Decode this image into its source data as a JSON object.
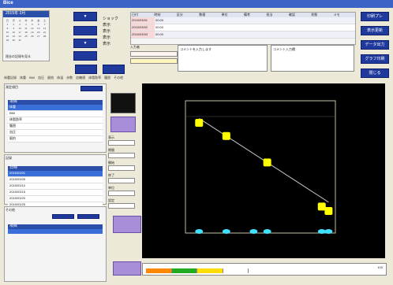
{
  "window": {
    "title": "Bice"
  },
  "calendar": {
    "header": "2015年 3月",
    "weekdays": [
      "日",
      "月",
      "火",
      "水",
      "木",
      "金",
      "土"
    ],
    "days": [
      "1",
      "2",
      "3",
      "4",
      "5",
      "6",
      "7",
      "8",
      "9",
      "10",
      "11",
      "12",
      "13",
      "14",
      "15",
      "16",
      "17",
      "18",
      "19",
      "20",
      "21",
      "22",
      "23",
      "24",
      "25",
      "26",
      "27",
      "28",
      "29",
      "30",
      "31"
    ],
    "footer_check": "過去の記録を見る"
  },
  "left_buttons": {
    "b1": "▼",
    "b2": "",
    "b3": "▼",
    "b4": "",
    "b5": "",
    "b6": ""
  },
  "options": {
    "items": [
      "ショック",
      "表示",
      "表示",
      "表示",
      "表示"
    ]
  },
  "top_table": {
    "headers": [
      "日付",
      "時刻",
      "区分",
      "数値",
      "単位",
      "備考",
      "担当",
      "確認",
      "状態",
      "メモ"
    ],
    "rows": [
      [
        "2015/03/01",
        "00:00"
      ],
      [
        "2015/03/02",
        "00:00"
      ],
      [
        "2015/03/03",
        "00:00"
      ]
    ]
  },
  "right_buttons": [
    "印刷プレ",
    "表示更新",
    "データ出力",
    "グラフ印刷",
    "閉じる"
  ],
  "memo": {
    "label": "入力者",
    "text": "コメントを入力します",
    "right_label": "コメント入力欄"
  },
  "tabs": [
    "体重記録",
    "体重",
    "BMI",
    "血圧",
    "脈拍",
    "体温",
    "歩数",
    "血糖値",
    "体脂肪率",
    "腹囲",
    "その他"
  ],
  "left_panels": {
    "p1_label": "測定項目",
    "p1_header": "項目",
    "p1_rows": [
      "体重",
      "BMI",
      "体脂肪率",
      "腹囲",
      "血圧",
      "脈拍"
    ],
    "p2_label": "記録",
    "p2_header": "日時",
    "p2_rows": [
      "2015/03/01",
      "2015/03/05",
      "2015/03/10",
      "2015/03/15",
      "2015/03/20",
      "2015/03/25"
    ],
    "p3_label": "その他",
    "p3_header": "項目"
  },
  "mid_panel": {
    "labels": [
      "表示",
      "期間",
      "開始",
      "終了",
      "単位",
      "設定"
    ],
    "btn_a": "",
    "btn_b": ""
  },
  "chart_data": {
    "type": "scatter",
    "title": "",
    "y_right_label": "",
    "points": [
      {
        "x": 1,
        "y": 70
      },
      {
        "x": 3,
        "y": 67
      },
      {
        "x": 6,
        "y": 61
      },
      {
        "x": 10,
        "y": 51
      },
      {
        "x": 10.5,
        "y": 50
      }
    ],
    "trend": [
      {
        "x": 1,
        "y": 71
      },
      {
        "x": 10.5,
        "y": 52
      }
    ],
    "bottom_markers": [
      1,
      3,
      5,
      6,
      10,
      10.5
    ],
    "colors": {
      "point": "#ffff00",
      "trend": "#c0c0c0",
      "marker": "#40e0ff",
      "axis": "#c0c0a0"
    }
  },
  "status_bar": {
    "segments": [
      "#ff8800",
      "#22aa22",
      "#ffdd00",
      "#ffffff"
    ],
    "right_text": "100"
  }
}
